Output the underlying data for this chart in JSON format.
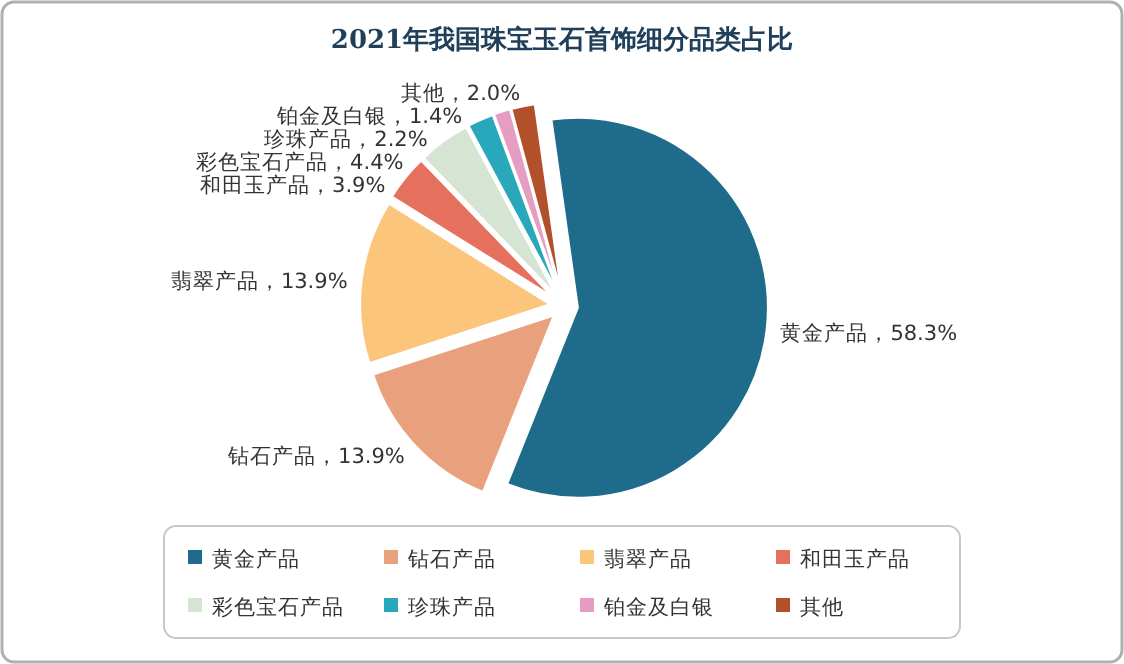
{
  "chart_data": {
    "type": "pie",
    "title": "2021年我国珠宝玉石首饰细分品类占比",
    "categories": [
      "黄金产品",
      "钻石产品",
      "翡翠产品",
      "和田玉产品",
      "彩色宝石产品",
      "珍珠产品",
      "铂金及白银",
      "其他"
    ],
    "values": [
      58.3,
      13.9,
      13.9,
      3.9,
      4.4,
      2.2,
      1.4,
      2.0
    ],
    "colors": [
      "#1f6b8b",
      "#e9a07c",
      "#fbc57c",
      "#e5705e",
      "#d6e4d4",
      "#2aa8bb",
      "#e79cc2",
      "#b2502b"
    ],
    "value_labels": [
      "黄金产品，58.3%",
      "钻石产品，13.9%",
      "翡翠产品，13.9%",
      "和田玉产品，3.9%",
      "彩色宝石产品，4.4%",
      "珍珠产品，2.2%",
      "铂金及白银，1.4%",
      "其他，2.0%"
    ],
    "legend": "bottom"
  }
}
